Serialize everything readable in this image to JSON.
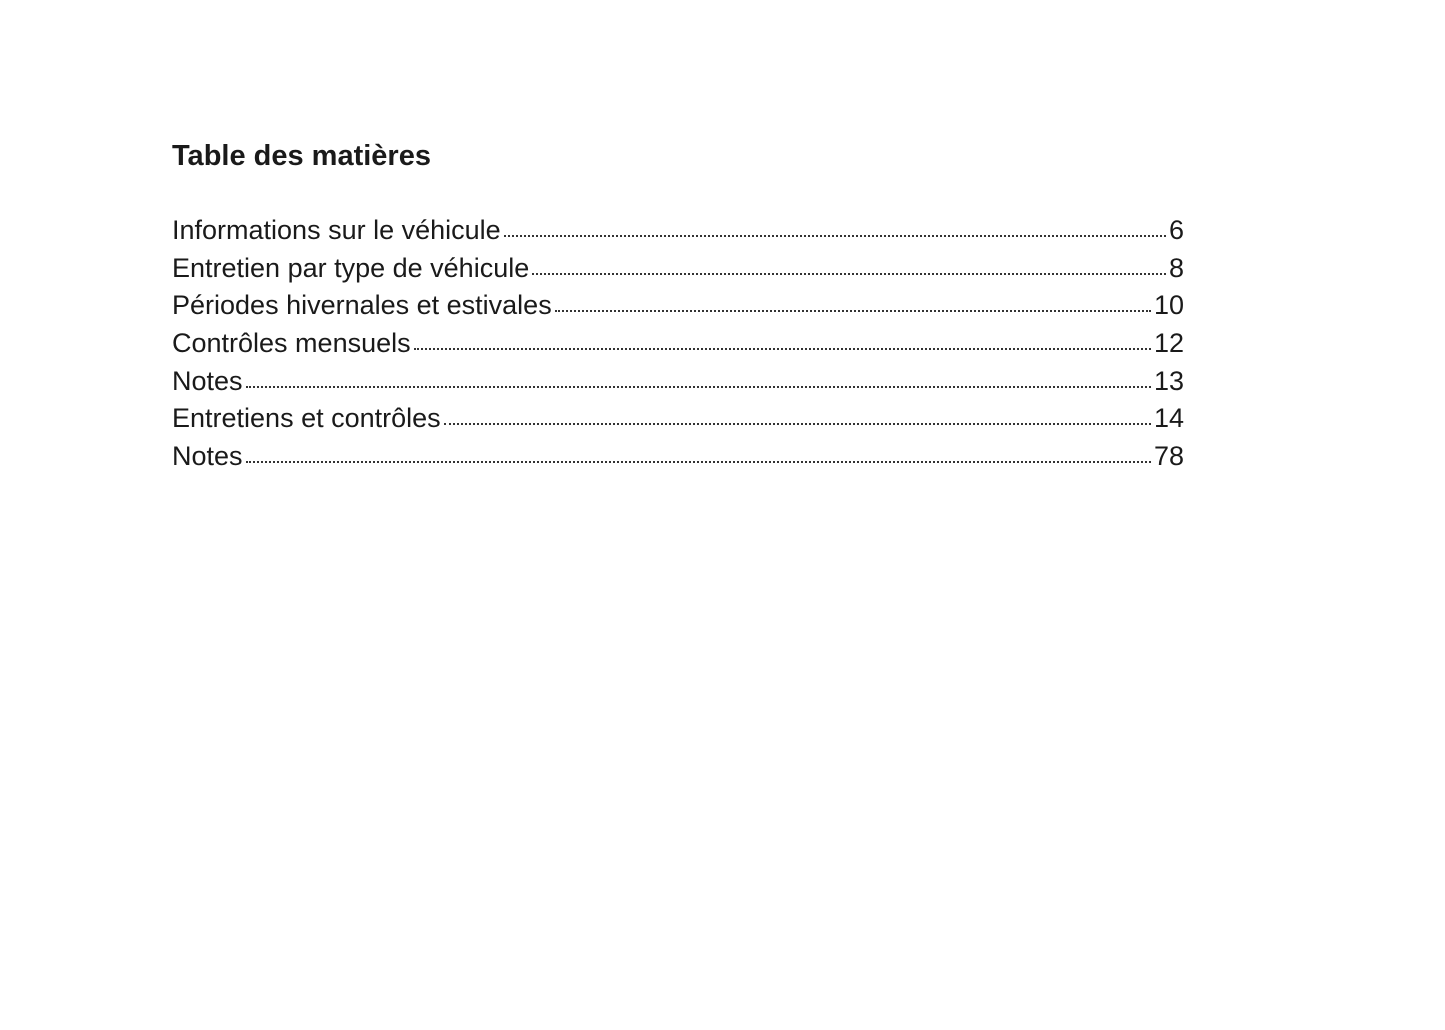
{
  "title": "Table des matières",
  "entries": [
    {
      "label": "Informations sur le véhicule",
      "page": "6"
    },
    {
      "label": "Entretien par type de véhicule",
      "page": "8"
    },
    {
      "label": "Périodes hivernales et estivales",
      "page": "10"
    },
    {
      "label": "Contrôles mensuels",
      "page": "12"
    },
    {
      "label": "Notes",
      "page": "13"
    },
    {
      "label": "Entretiens et contrôles",
      "page": "14"
    },
    {
      "label": "Notes",
      "page": "78"
    }
  ]
}
